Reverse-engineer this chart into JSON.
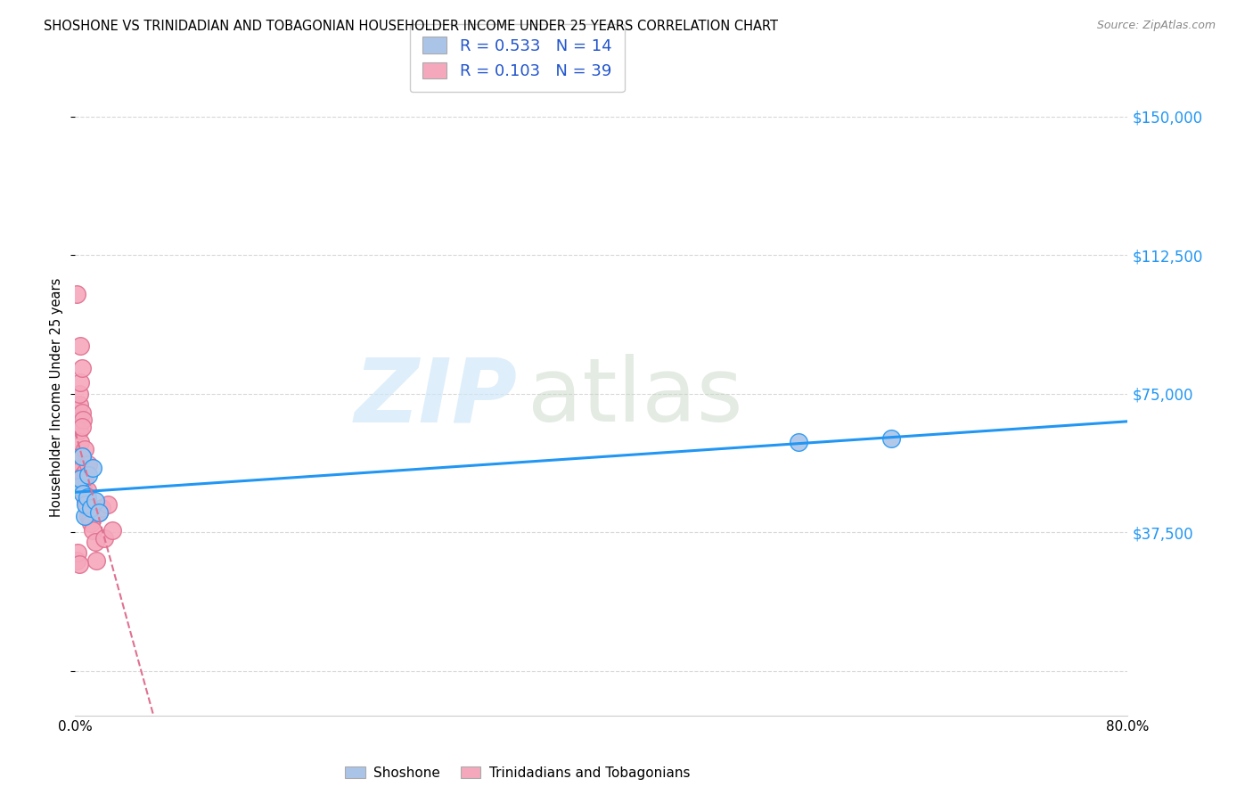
{
  "title": "SHOSHONE VS TRINIDADIAN AND TOBAGONIAN HOUSEHOLDER INCOME UNDER 25 YEARS CORRELATION CHART",
  "source": "Source: ZipAtlas.com",
  "ylabel": "Householder Income Under 25 years",
  "xlim": [
    0.0,
    0.8
  ],
  "ylim": [
    0,
    150000
  ],
  "yticks": [
    0,
    37500,
    75000,
    112500,
    150000
  ],
  "ytick_labels": [
    "",
    "$37,500",
    "$75,000",
    "$112,500",
    "$150,000"
  ],
  "xtick_labels": [
    "0.0%",
    "80.0%"
  ],
  "shoshone_R": 0.533,
  "shoshone_N": 14,
  "trinidadian_R": 0.103,
  "trinidadian_N": 39,
  "shoshone_color": "#aac4e8",
  "trinidadian_color": "#f5a8bc",
  "shoshone_line_color": "#2196F3",
  "trinidadian_line_color": "#e07090",
  "legend_text_color": "#2255cc",
  "watermark_zip": "ZIP",
  "watermark_atlas": "atlas",
  "background_color": "#ffffff",
  "grid_color": "#d8d8d8",
  "shoshone_x": [
    0.003,
    0.004,
    0.005,
    0.006,
    0.007,
    0.008,
    0.009,
    0.01,
    0.012,
    0.013,
    0.015,
    0.018,
    0.55,
    0.62
  ],
  "shoshone_y": [
    50000,
    52000,
    58000,
    48000,
    42000,
    45000,
    47000,
    53000,
    44000,
    55000,
    46000,
    43000,
    62000,
    63000
  ],
  "trinidadian_x": [
    0.001,
    0.002,
    0.002,
    0.003,
    0.003,
    0.003,
    0.004,
    0.004,
    0.004,
    0.005,
    0.005,
    0.005,
    0.006,
    0.006,
    0.006,
    0.007,
    0.007,
    0.007,
    0.008,
    0.008,
    0.009,
    0.009,
    0.01,
    0.01,
    0.011,
    0.012,
    0.013,
    0.015,
    0.016,
    0.018,
    0.02,
    0.022,
    0.025,
    0.028,
    0.001,
    0.002,
    0.003,
    0.004,
    0.005
  ],
  "trinidadian_y": [
    102000,
    56000,
    68000,
    72000,
    75000,
    65000,
    62000,
    58000,
    78000,
    70000,
    55000,
    82000,
    53000,
    68000,
    50000,
    48000,
    60000,
    52000,
    54000,
    46000,
    49000,
    44000,
    42000,
    56000,
    41000,
    40000,
    38000,
    35000,
    30000,
    43000,
    44000,
    36000,
    45000,
    38000,
    30000,
    32000,
    29000,
    88000,
    66000
  ]
}
